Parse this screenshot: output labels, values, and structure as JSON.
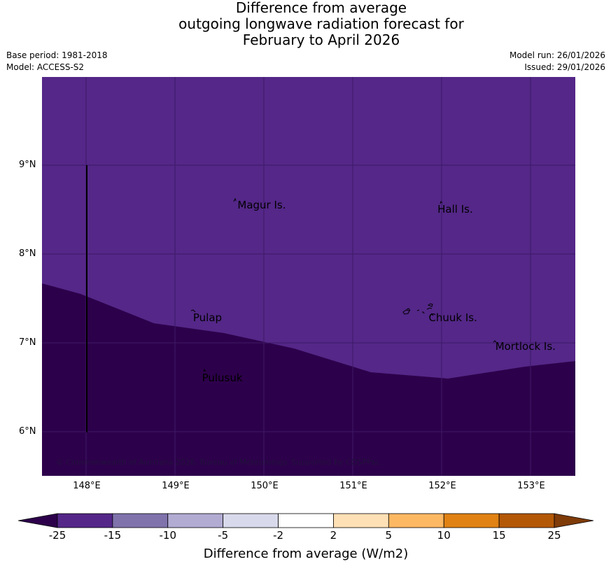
{
  "title": {
    "line1": "Difference from average",
    "line2": "outgoing longwave radiation forecast for",
    "line3": "February to April 2026"
  },
  "meta": {
    "base_period": "Base period: 1981-2018",
    "model": "Model: ACCESS-S2",
    "model_run": "Model run: 26/01/2026",
    "issued": "Issued: 29/01/2026"
  },
  "map": {
    "lon_range": [
      147.5,
      153.5
    ],
    "lat_range": [
      5.5,
      10.0
    ],
    "latitude_labels": [
      "9°N",
      "8°N",
      "7°N",
      "6°N"
    ],
    "longitude_labels": [
      "148°E",
      "149°E",
      "150°E",
      "151°E",
      "152°E",
      "153°E"
    ],
    "places": [
      {
        "name": "Magur Is.",
        "lon": 149.7,
        "lat": 8.55
      },
      {
        "name": "Hall Is.",
        "lon": 151.95,
        "lat": 8.5
      },
      {
        "name": "Pulap",
        "lon": 149.2,
        "lat": 7.28
      },
      {
        "name": "Chuuk Is.",
        "lon": 151.85,
        "lat": 7.28
      },
      {
        "name": "Mortlock Is.",
        "lon": 152.6,
        "lat": 6.95
      },
      {
        "name": "Pulusuk",
        "lon": 149.3,
        "lat": 6.6
      }
    ],
    "copyright": "© Commonwealth of Australia 2026, Bureau of Meteorology. Supported by COSPPac.",
    "fill_colors": {
      "category_minus15_to_minus25": "#542788",
      "category_below_minus25": "#2d004b"
    }
  },
  "colorbar": {
    "ticks": [
      "-25",
      "-15",
      "-10",
      "-5",
      "-2",
      "2",
      "5",
      "10",
      "15",
      "25"
    ],
    "colors": [
      "#2d004b",
      "#542788",
      "#8073ac",
      "#b2abd2",
      "#d8daeb",
      "#ffffff",
      "#fee0b6",
      "#fdb863",
      "#e08214",
      "#b35806",
      "#7f3b08"
    ],
    "label": "Difference from average (W/m2)"
  }
}
